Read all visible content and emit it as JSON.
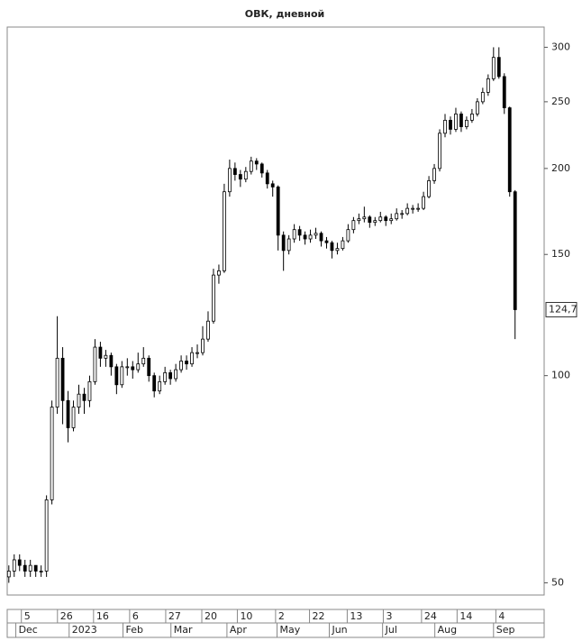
{
  "chart_data": {
    "type": "candlestick",
    "title": "ОВК, дневной",
    "log_scale": true,
    "ylim": [
      48,
      321
    ],
    "yticks": [
      50,
      100,
      150,
      200,
      250,
      300
    ],
    "xlim": [
      -0.3,
      99.4
    ],
    "xticks": [
      {
        "value": 3,
        "label": "5"
      },
      {
        "value": 9.7,
        "label": "26"
      },
      {
        "value": 16.4,
        "label": "16"
      },
      {
        "value": 23.1,
        "label": "6"
      },
      {
        "value": 29.8,
        "label": "27"
      },
      {
        "value": 36.5,
        "label": "20"
      },
      {
        "value": 43.1,
        "label": "10"
      },
      {
        "value": 50.2,
        "label": "2"
      },
      {
        "value": 56.5,
        "label": "22"
      },
      {
        "value": 63.5,
        "label": "13"
      },
      {
        "value": 70.2,
        "label": "3"
      },
      {
        "value": 77.3,
        "label": "24"
      },
      {
        "value": 83.9,
        "label": "14"
      },
      {
        "value": 91.1,
        "label": "4"
      }
    ],
    "month_ticks": [
      {
        "value": 1.3,
        "label": "Dec"
      },
      {
        "value": 11.2,
        "label": "2023"
      },
      {
        "value": 21.2,
        "label": "Feb"
      },
      {
        "value": 30.1,
        "label": "Mar"
      },
      {
        "value": 40.5,
        "label": "Apr"
      },
      {
        "value": 49.8,
        "label": "May"
      },
      {
        "value": 59.5,
        "label": "Jun"
      },
      {
        "value": 69.4,
        "label": "Jul"
      },
      {
        "value": 79.1,
        "label": "Aug"
      },
      {
        "value": 90,
        "label": "Sep"
      }
    ],
    "last_label": {
      "value": 124.7,
      "label": "124,7"
    },
    "up_color": "#ffffff",
    "down_color": "#000000",
    "open": [
      51,
      52,
      54,
      53,
      52,
      53,
      52,
      52,
      66,
      90,
      106,
      92,
      84,
      90,
      94,
      92,
      98,
      110,
      106,
      107,
      103,
      97,
      103,
      103,
      102,
      104,
      106,
      100,
      95,
      98,
      101,
      99,
      102,
      105,
      104,
      108,
      108,
      113,
      120,
      140,
      142,
      185,
      200,
      196,
      193,
      198,
      205,
      203,
      197,
      190,
      188,
      160,
      152,
      158,
      163,
      160,
      158,
      160,
      161,
      157,
      156,
      152,
      153,
      157,
      163,
      168,
      169,
      170,
      167,
      168,
      170,
      168,
      169,
      172,
      172,
      175,
      175,
      175,
      182,
      192,
      200,
      225,
      235,
      228,
      240,
      230,
      235,
      240,
      250,
      258,
      270,
      290,
      272,
      245,
      185
    ],
    "high": [
      53,
      55,
      55,
      54,
      54,
      53,
      53,
      67,
      92,
      122,
      110,
      95,
      92,
      97,
      96,
      100,
      113,
      112,
      109,
      108,
      104,
      105,
      106,
      105,
      108,
      110,
      107,
      101,
      100,
      103,
      102,
      104,
      107,
      107,
      110,
      111,
      118,
      124,
      143,
      145,
      190,
      206,
      204,
      199,
      201,
      208,
      207,
      204,
      199,
      192,
      189,
      162,
      160,
      166,
      165,
      162,
      163,
      164,
      162,
      159,
      157,
      156,
      159,
      166,
      170,
      172,
      176,
      171,
      170,
      173,
      171,
      172,
      175,
      174,
      178,
      177,
      178,
      185,
      195,
      203,
      228,
      240,
      238,
      245,
      242,
      238,
      244,
      253,
      262,
      274,
      300,
      300,
      275,
      246,
      186
    ],
    "low": [
      50,
      51,
      52,
      51,
      51,
      51,
      51,
      51,
      65,
      88,
      85,
      80,
      83,
      88,
      88,
      90,
      97,
      103,
      103,
      100,
      94,
      96,
      100,
      99,
      101,
      103,
      98,
      93,
      94,
      97,
      97,
      98,
      101,
      102,
      103,
      106,
      107,
      112,
      119,
      136,
      141,
      182,
      192,
      188,
      191,
      196,
      199,
      194,
      187,
      182,
      152,
      142,
      150,
      156,
      157,
      155,
      156,
      158,
      154,
      153,
      148,
      150,
      152,
      156,
      161,
      166,
      167,
      164,
      165,
      167,
      165,
      166,
      168,
      169,
      171,
      172,
      173,
      174,
      181,
      190,
      198,
      222,
      224,
      226,
      226,
      228,
      233,
      238,
      248,
      255,
      268,
      270,
      240,
      182,
      113
    ],
    "close": [
      52,
      54,
      53,
      52,
      53,
      52,
      52,
      66,
      90,
      106,
      92,
      84,
      90,
      94,
      92,
      98,
      110,
      106,
      107,
      103,
      97,
      103,
      103,
      102,
      104,
      106,
      100,
      95,
      98,
      101,
      99,
      102,
      105,
      104,
      108,
      108,
      113,
      120,
      140,
      142,
      185,
      200,
      196,
      193,
      198,
      205,
      203,
      197,
      190,
      188,
      160,
      152,
      158,
      163,
      160,
      158,
      160,
      161,
      157,
      156,
      152,
      153,
      157,
      163,
      168,
      169,
      170,
      167,
      168,
      170,
      168,
      169,
      172,
      172,
      175,
      175,
      175,
      182,
      192,
      200,
      225,
      235,
      228,
      240,
      230,
      235,
      240,
      250,
      258,
      270,
      290,
      272,
      245,
      185,
      124.7
    ]
  }
}
